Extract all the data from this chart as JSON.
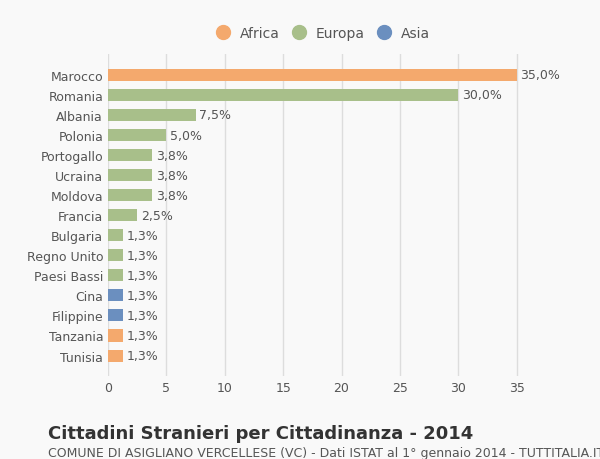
{
  "countries": [
    "Tunisia",
    "Tanzania",
    "Filippine",
    "Cina",
    "Paesi Bassi",
    "Regno Unito",
    "Bulgaria",
    "Francia",
    "Moldova",
    "Ucraina",
    "Portogallo",
    "Polonia",
    "Albania",
    "Romania",
    "Marocco"
  ],
  "values": [
    1.3,
    1.3,
    1.3,
    1.3,
    1.3,
    1.3,
    1.3,
    2.5,
    3.8,
    3.8,
    3.8,
    5.0,
    7.5,
    30.0,
    35.0
  ],
  "labels": [
    "1,3%",
    "1,3%",
    "1,3%",
    "1,3%",
    "1,3%",
    "1,3%",
    "1,3%",
    "2,5%",
    "3,8%",
    "3,8%",
    "3,8%",
    "5,0%",
    "7,5%",
    "30,0%",
    "35,0%"
  ],
  "continents": [
    "Africa",
    "Africa",
    "Asia",
    "Asia",
    "Europa",
    "Europa",
    "Europa",
    "Europa",
    "Europa",
    "Europa",
    "Europa",
    "Europa",
    "Europa",
    "Europa",
    "Africa"
  ],
  "colors": {
    "Africa": "#F4A96D",
    "Europa": "#A8BF8A",
    "Asia": "#6B8FBF"
  },
  "title": "Cittadini Stranieri per Cittadinanza - 2014",
  "subtitle": "COMUNE DI ASIGLIANO VERCELLESE (VC) - Dati ISTAT al 1° gennaio 2014 - TUTTITALIA.IT",
  "xlim": [
    0,
    37
  ],
  "xticks": [
    0,
    5,
    10,
    15,
    20,
    25,
    30,
    35
  ],
  "background_color": "#f9f9f9",
  "grid_color": "#dddddd",
  "title_fontsize": 13,
  "subtitle_fontsize": 9,
  "tick_fontsize": 9,
  "label_fontsize": 9
}
